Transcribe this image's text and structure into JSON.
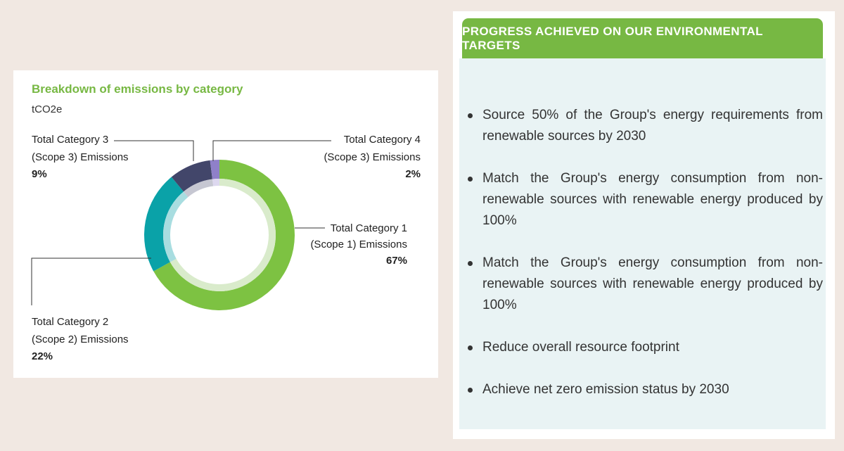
{
  "chart_data": {
    "type": "donut",
    "title": "Breakdown of emissions by category",
    "unit": "tCO2e",
    "slices": [
      {
        "label_line1": "Total Category 1",
        "label_line2": "(Scope 1) Emissions",
        "value": 67,
        "pct_label": "67%",
        "color": "#7dc242",
        "inner_color": "#d9ebcb"
      },
      {
        "label_line1": "Total Category 2",
        "label_line2": "(Scope 2) Emissions",
        "value": 22,
        "pct_label": "22%",
        "color": "#0aa2a8",
        "inner_color": "#a8dde0"
      },
      {
        "label_line1": "Total Category 3",
        "label_line2": "(Scope 3) Emissions",
        "value": 9,
        "pct_label": "9%",
        "color": "#42466a",
        "inner_color": "#c6c7d2"
      },
      {
        "label_line1": "Total Category 4",
        "label_line2": "(Scope 3) Emissions",
        "value": 2,
        "pct_label": "2%",
        "color": "#8f80c9",
        "inner_color": "#ddd8ef"
      }
    ]
  },
  "targets": {
    "header": "PROGRESS ACHIEVED ON OUR ENVIRONMENTAL TARGETS",
    "items": [
      "Source 50% of the Group's energy requirements from renewable sources by 2030",
      "Match the Group's energy consumption from non-renewable sources with renewable energy produced by 100%",
      "Match the Group's energy consumption from non-renewable sources with renewable energy produced by 100%",
      "Reduce overall resource footprint",
      "Achieve net zero emission status by 2030"
    ]
  }
}
